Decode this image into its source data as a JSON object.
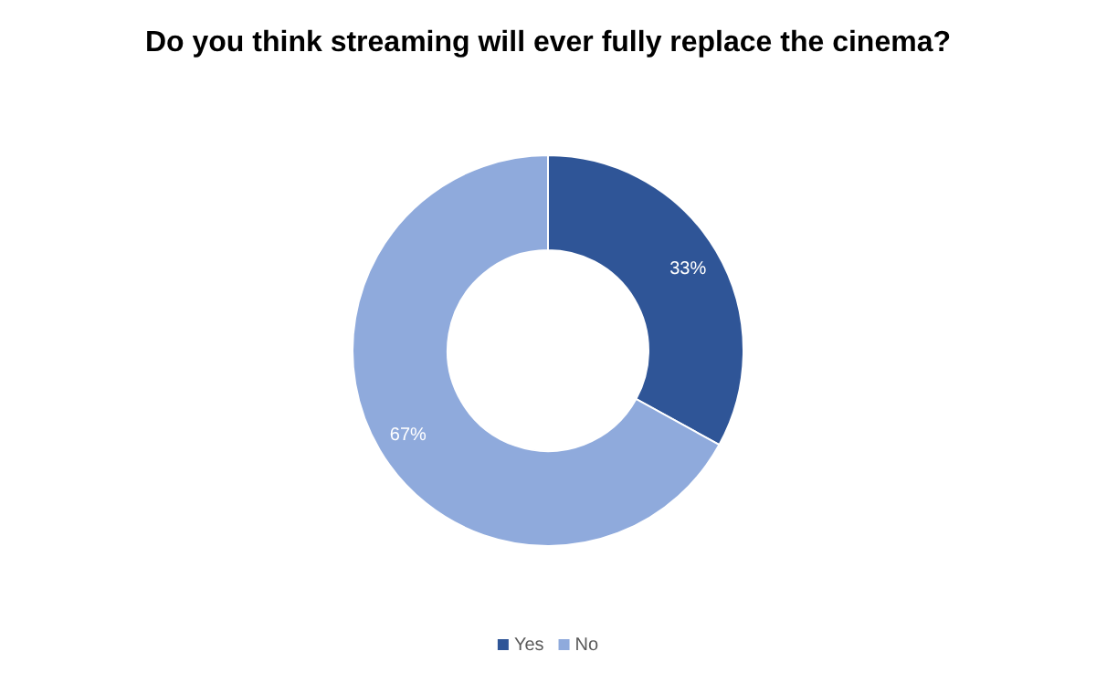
{
  "chart_data": {
    "type": "donut",
    "title": "Do you think streaming will ever fully replace the cinema?",
    "categories": [
      "Yes",
      "No"
    ],
    "values": [
      33,
      67
    ],
    "colors": [
      "#2f5597",
      "#8faadc"
    ],
    "value_labels": [
      "33%",
      "67%"
    ],
    "legend": "bottom"
  }
}
